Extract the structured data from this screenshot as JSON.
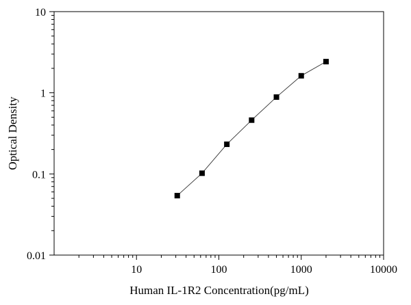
{
  "chart_data": {
    "type": "scatter",
    "title": "",
    "xlabel": "Human IL-1R2 Concentration(pg/mL)",
    "ylabel": "Optical Density",
    "x_scale": "log",
    "y_scale": "log",
    "xlim": [
      1,
      10000
    ],
    "ylim": [
      0.01,
      10
    ],
    "x_ticks": [
      10,
      100,
      1000,
      10000
    ],
    "x_tick_labels": [
      "10",
      "100",
      "1000",
      "10000"
    ],
    "y_ticks": [
      0.01,
      0.1,
      1,
      10
    ],
    "y_tick_labels": [
      "0.01",
      "0.1",
      "1",
      "10"
    ],
    "grid": false,
    "legend": "none",
    "series": [
      {
        "color": "#000000",
        "marker": "square",
        "line": "fitted-curve",
        "x": [
          31.25,
          62.5,
          125,
          250,
          500,
          1000,
          2000
        ],
        "y": [
          0.054,
          0.102,
          0.232,
          0.46,
          0.885,
          1.62,
          2.42
        ]
      }
    ]
  }
}
